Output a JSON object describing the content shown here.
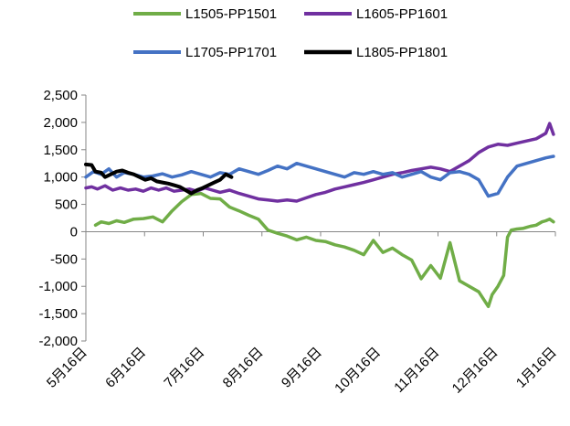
{
  "chart_data": {
    "type": "line",
    "x_tick_labels": [
      "5月16日",
      "6月16日",
      "7月16日",
      "8月16日",
      "9月16日",
      "10月16日",
      "11月16日",
      "12月16日",
      "1月16日"
    ],
    "y_tick_labels": [
      "2,500",
      "2,000",
      "1,500",
      "1,000",
      "500",
      "0",
      "-500",
      "-1,000",
      "-1,500",
      "-2,000"
    ],
    "ylim": [
      -2000,
      2500
    ],
    "xlim": [
      0,
      245
    ],
    "legend_position": "top",
    "grid": false,
    "series": [
      {
        "name": "L1505-PP1501",
        "color": "#70ad47",
        "x": [
          5,
          8,
          12,
          16,
          20,
          25,
          30,
          35,
          40,
          45,
          50,
          55,
          60,
          65,
          70,
          75,
          80,
          85,
          90,
          95,
          100,
          105,
          110,
          115,
          120,
          125,
          130,
          135,
          140,
          145,
          150,
          155,
          160,
          165,
          170,
          175,
          180,
          185,
          190,
          195,
          200,
          205,
          210,
          212,
          215,
          218,
          220,
          222,
          225,
          228,
          230,
          232,
          235,
          238,
          240,
          242,
          244
        ],
        "values": [
          120,
          180,
          150,
          200,
          170,
          230,
          240,
          270,
          180,
          380,
          550,
          680,
          700,
          610,
          600,
          450,
          380,
          300,
          230,
          30,
          -30,
          -80,
          -150,
          -100,
          -160,
          -180,
          -240,
          -280,
          -340,
          -420,
          -160,
          -380,
          -300,
          -420,
          -520,
          -860,
          -620,
          -850,
          -200,
          -900,
          -1000,
          -1100,
          -1370,
          -1150,
          -1000,
          -800,
          -100,
          30,
          50,
          60,
          80,
          100,
          120,
          180,
          200,
          230,
          180
        ]
      },
      {
        "name": "L1605-PP1601",
        "color": "#7030a0",
        "x": [
          0,
          3,
          6,
          10,
          14,
          18,
          22,
          26,
          30,
          34,
          38,
          42,
          46,
          50,
          54,
          58,
          62,
          66,
          70,
          75,
          80,
          85,
          90,
          95,
          100,
          105,
          110,
          115,
          120,
          125,
          130,
          135,
          140,
          145,
          150,
          155,
          160,
          165,
          170,
          175,
          180,
          185,
          190,
          195,
          200,
          205,
          210,
          215,
          220,
          225,
          230,
          235,
          240,
          242,
          244
        ],
        "values": [
          800,
          820,
          780,
          840,
          760,
          800,
          760,
          780,
          740,
          800,
          760,
          800,
          740,
          760,
          780,
          740,
          800,
          760,
          720,
          760,
          700,
          650,
          600,
          580,
          560,
          580,
          560,
          620,
          680,
          720,
          780,
          820,
          860,
          900,
          950,
          1000,
          1050,
          1080,
          1120,
          1150,
          1180,
          1150,
          1100,
          1200,
          1300,
          1450,
          1550,
          1600,
          1580,
          1620,
          1660,
          1700,
          1800,
          1980,
          1780
        ]
      },
      {
        "name": "L1705-PP1701",
        "color": "#4472c4",
        "x": [
          0,
          4,
          8,
          12,
          16,
          20,
          25,
          30,
          35,
          40,
          45,
          50,
          55,
          60,
          65,
          70,
          75,
          80,
          85,
          90,
          95,
          100,
          105,
          110,
          115,
          120,
          125,
          130,
          135,
          140,
          145,
          150,
          155,
          160,
          165,
          170,
          175,
          180,
          185,
          190,
          195,
          200,
          205,
          210,
          215,
          220,
          225,
          230,
          235,
          240,
          244
        ],
        "values": [
          1000,
          1100,
          1050,
          1150,
          1000,
          1080,
          1050,
          1000,
          1020,
          1060,
          1000,
          1040,
          1100,
          1050,
          1000,
          1080,
          1050,
          1150,
          1100,
          1050,
          1120,
          1200,
          1150,
          1250,
          1200,
          1150,
          1100,
          1050,
          1000,
          1080,
          1050,
          1100,
          1050,
          1080,
          1000,
          1050,
          1100,
          1000,
          950,
          1080,
          1100,
          1050,
          950,
          650,
          700,
          1000,
          1200,
          1250,
          1300,
          1350,
          1380
        ]
      },
      {
        "name": "L1805-PP1801",
        "color": "#000000",
        "x": [
          0,
          3,
          5,
          8,
          10,
          13,
          16,
          19,
          22,
          25,
          28,
          31,
          34,
          37,
          40,
          43,
          46,
          49,
          52,
          55,
          58,
          61,
          64,
          67,
          70,
          73,
          76
        ],
        "values": [
          1230,
          1220,
          1100,
          1080,
          1000,
          1050,
          1100,
          1120,
          1080,
          1050,
          1000,
          950,
          980,
          920,
          900,
          880,
          850,
          820,
          760,
          700,
          760,
          800,
          850,
          900,
          950,
          1050,
          1000
        ]
      }
    ]
  }
}
